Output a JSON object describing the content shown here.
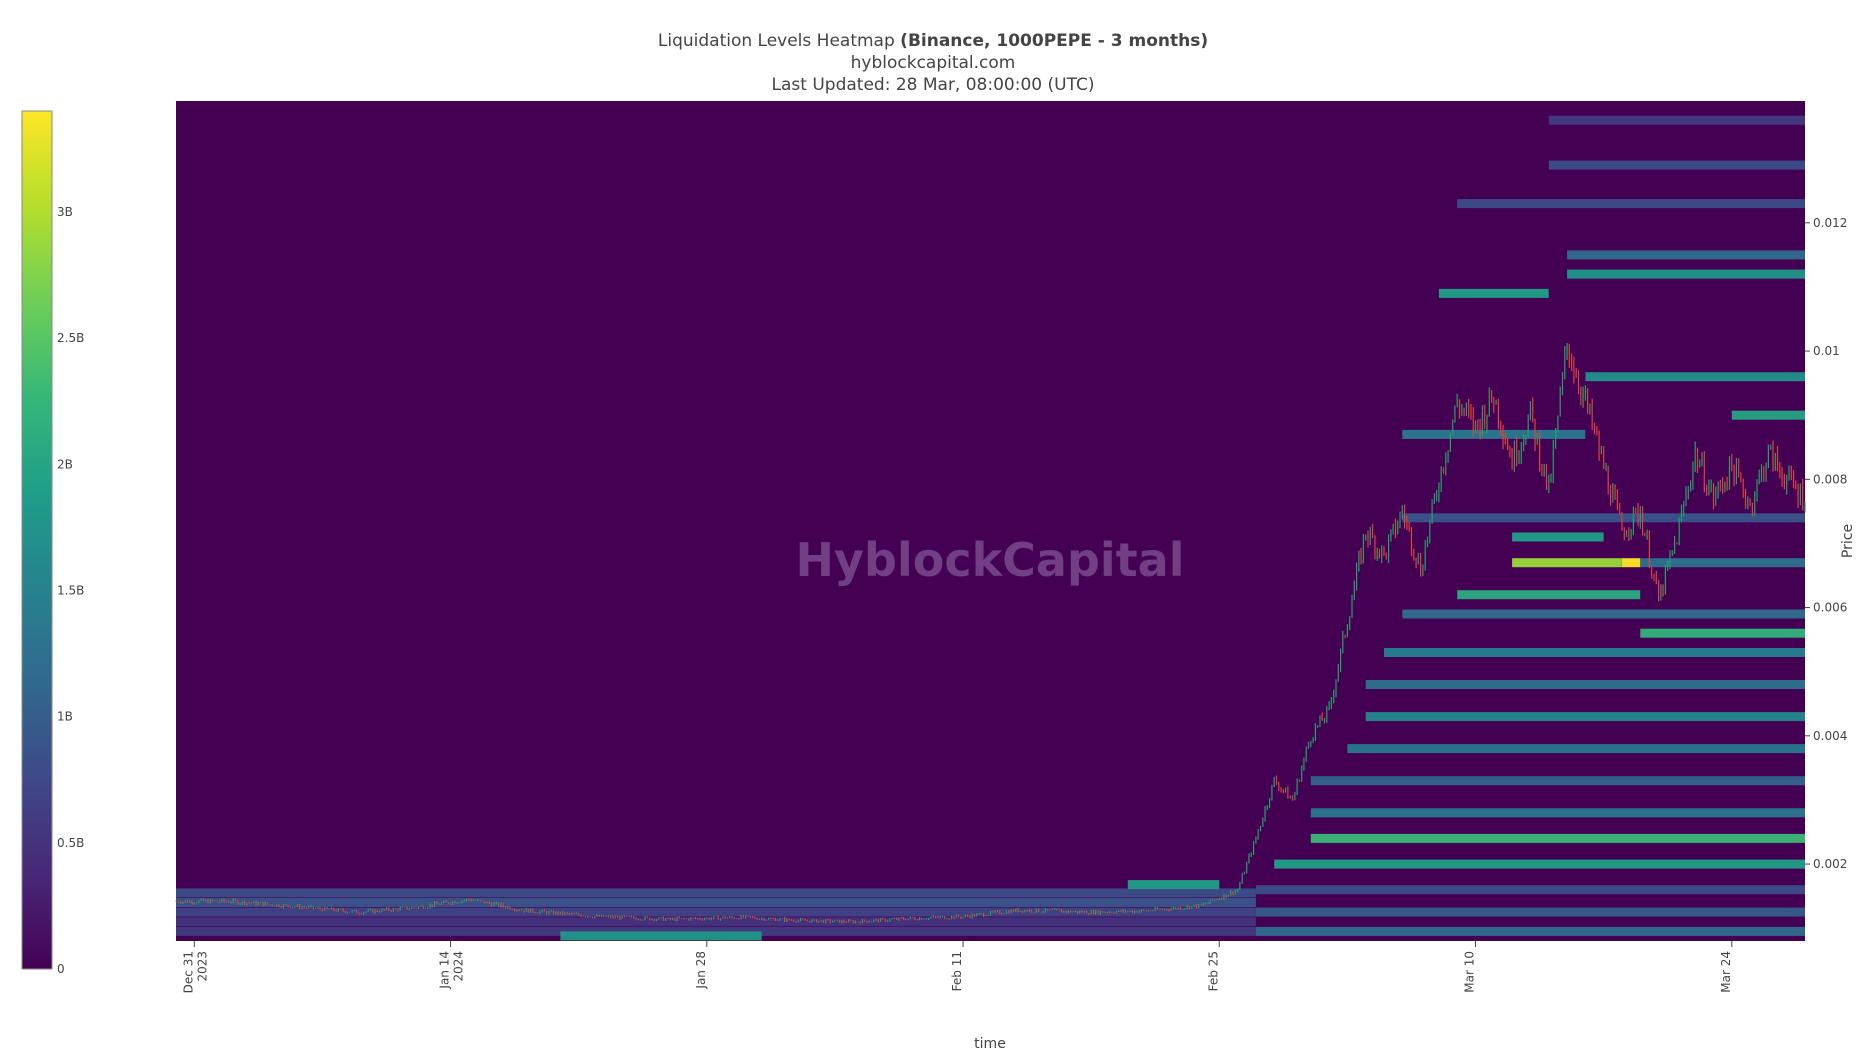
{
  "header": {
    "title_prefix": "Liquidation Levels Heatmap ",
    "title_bold": "(Binance, 1000PEPE - 3 months)",
    "subtitle": "hyblockcapital.com",
    "updated": "Last Updated: 28 Mar, 08:00:00 (UTC)"
  },
  "watermark": "HyblockCapital",
  "colors": {
    "background_heat": "#440154",
    "colorscale": [
      "#440154",
      "#482878",
      "#3e4989",
      "#31688e",
      "#26828e",
      "#1f9e89",
      "#35b779",
      "#6ece58",
      "#b5de2b",
      "#fde725"
    ],
    "candle_up": "#2a9d6a",
    "candle_down": "#e0423c"
  },
  "chart_data": {
    "type": "heatmap",
    "title": "Liquidation Levels Heatmap (Binance, 1000PEPE - 3 months)",
    "xlabel": "time",
    "ylabel": "Price",
    "x_range": [
      "2023-12-30",
      "2024-03-28"
    ],
    "y_range": [
      0.0008,
      0.0139
    ],
    "x_ticks": [
      {
        "date": "2023-12-31",
        "line1": "Dec 31",
        "line2": "2023"
      },
      {
        "date": "2024-01-14",
        "line1": "Jan 14",
        "line2": "2024"
      },
      {
        "date": "2024-01-28",
        "line1": "Jan 28",
        "line2": ""
      },
      {
        "date": "2024-02-11",
        "line1": "Feb 11",
        "line2": ""
      },
      {
        "date": "2024-02-25",
        "line1": "Feb 25",
        "line2": ""
      },
      {
        "date": "2024-03-10",
        "line1": "Mar 10",
        "line2": ""
      },
      {
        "date": "2024-03-24",
        "line1": "Mar 24",
        "line2": ""
      }
    ],
    "y_ticks": [
      "0.002",
      "0.004",
      "0.006",
      "0.008",
      "0.01",
      "0.012"
    ],
    "colorbar": {
      "range": [
        0,
        3.4
      ],
      "unit_values": [
        0,
        0.5,
        1,
        1.5,
        2,
        2.5,
        3
      ],
      "labels": [
        "0",
        "0.5B",
        "1B",
        "1.5B",
        "2B",
        "2.5B",
        "3B"
      ]
    },
    "liquidation_bands": [
      {
        "start": "2023-12-30",
        "end": "2024-02-27",
        "price": 0.00095,
        "value": 0.6
      },
      {
        "start": "2023-12-30",
        "end": "2024-02-27",
        "price": 0.0011,
        "value": 0.5
      },
      {
        "start": "2023-12-30",
        "end": "2024-02-27",
        "price": 0.00125,
        "value": 0.7
      },
      {
        "start": "2023-12-30",
        "end": "2024-02-27",
        "price": 0.0014,
        "value": 0.9
      },
      {
        "start": "2023-12-30",
        "end": "2024-02-27",
        "price": 0.00155,
        "value": 0.8
      },
      {
        "start": "2024-01-20",
        "end": "2024-01-31",
        "price": 0.00088,
        "value": 1.8
      },
      {
        "start": "2024-02-20",
        "end": "2024-02-25",
        "price": 0.00168,
        "value": 1.9
      },
      {
        "start": "2024-02-27",
        "end": "2024-03-28",
        "price": 0.00095,
        "value": 1.2
      },
      {
        "start": "2024-02-27",
        "end": "2024-03-28",
        "price": 0.00125,
        "value": 1.0
      },
      {
        "start": "2024-02-27",
        "end": "2024-03-28",
        "price": 0.0016,
        "value": 0.8
      },
      {
        "start": "2024-02-28",
        "end": "2024-03-28",
        "price": 0.002,
        "value": 1.9
      },
      {
        "start": "2024-03-01",
        "end": "2024-03-28",
        "price": 0.0024,
        "value": 2.3
      },
      {
        "start": "2024-03-01",
        "end": "2024-03-28",
        "price": 0.0028,
        "value": 1.4
      },
      {
        "start": "2024-03-01",
        "end": "2024-03-28",
        "price": 0.0033,
        "value": 1.1
      },
      {
        "start": "2024-03-03",
        "end": "2024-03-28",
        "price": 0.0038,
        "value": 1.4
      },
      {
        "start": "2024-03-04",
        "end": "2024-03-28",
        "price": 0.0043,
        "value": 1.6
      },
      {
        "start": "2024-03-04",
        "end": "2024-03-28",
        "price": 0.0048,
        "value": 1.3
      },
      {
        "start": "2024-03-05",
        "end": "2024-03-28",
        "price": 0.0053,
        "value": 1.5
      },
      {
        "start": "2024-03-19",
        "end": "2024-03-28",
        "price": 0.0056,
        "value": 2.2
      },
      {
        "start": "2024-03-06",
        "end": "2024-03-28",
        "price": 0.0059,
        "value": 1.2
      },
      {
        "start": "2024-03-09",
        "end": "2024-03-19",
        "price": 0.0062,
        "value": 2.1
      },
      {
        "start": "2024-03-12",
        "end": "2024-03-18",
        "price": 0.0067,
        "value": 2.9
      },
      {
        "start": "2024-03-18",
        "end": "2024-03-19",
        "price": 0.0067,
        "value": 3.4
      },
      {
        "start": "2024-03-19",
        "end": "2024-03-28",
        "price": 0.0067,
        "value": 1.3
      },
      {
        "start": "2024-03-12",
        "end": "2024-03-17",
        "price": 0.0071,
        "value": 1.9
      },
      {
        "start": "2024-03-06",
        "end": "2024-03-28",
        "price": 0.0074,
        "value": 0.9
      },
      {
        "start": "2024-03-06",
        "end": "2024-03-16",
        "price": 0.0087,
        "value": 1.4
      },
      {
        "start": "2024-03-24",
        "end": "2024-03-28",
        "price": 0.009,
        "value": 2.0
      },
      {
        "start": "2024-03-16",
        "end": "2024-03-28",
        "price": 0.0096,
        "value": 1.7
      },
      {
        "start": "2024-03-08",
        "end": "2024-03-14",
        "price": 0.0109,
        "value": 1.9
      },
      {
        "start": "2024-03-15",
        "end": "2024-03-28",
        "price": 0.0112,
        "value": 1.8
      },
      {
        "start": "2024-03-15",
        "end": "2024-03-28",
        "price": 0.0115,
        "value": 1.2
      },
      {
        "start": "2024-03-09",
        "end": "2024-03-28",
        "price": 0.0123,
        "value": 0.8
      },
      {
        "start": "2024-03-14",
        "end": "2024-03-28",
        "price": 0.0129,
        "value": 0.8
      },
      {
        "start": "2024-03-14",
        "end": "2024-03-28",
        "price": 0.0136,
        "value": 0.6
      }
    ],
    "price_series": {
      "dates": [
        "2023-12-30",
        "2024-01-02",
        "2024-01-05",
        "2024-01-09",
        "2024-01-12",
        "2024-01-15",
        "2024-01-18",
        "2024-01-22",
        "2024-01-26",
        "2024-01-30",
        "2024-02-02",
        "2024-02-05",
        "2024-02-08",
        "2024-02-11",
        "2024-02-14",
        "2024-02-18",
        "2024-02-21",
        "2024-02-24",
        "2024-02-26",
        "2024-02-27",
        "2024-02-28",
        "2024-02-29",
        "2024-03-01",
        "2024-03-02",
        "2024-03-03",
        "2024-03-04",
        "2024-03-05",
        "2024-03-06",
        "2024-03-07",
        "2024-03-08",
        "2024-03-09",
        "2024-03-10",
        "2024-03-11",
        "2024-03-12",
        "2024-03-13",
        "2024-03-14",
        "2024-03-15",
        "2024-03-16",
        "2024-03-17",
        "2024-03-18",
        "2024-03-19",
        "2024-03-20",
        "2024-03-21",
        "2024-03-22",
        "2024-03-23",
        "2024-03-24",
        "2024-03-25",
        "2024-03-26",
        "2024-03-27",
        "2024-03-28"
      ],
      "prices": [
        0.00142,
        0.00142,
        0.00135,
        0.00125,
        0.00132,
        0.00145,
        0.00128,
        0.00118,
        0.00114,
        0.00117,
        0.00112,
        0.0011,
        0.00115,
        0.00118,
        0.00128,
        0.00125,
        0.00127,
        0.00135,
        0.0016,
        0.0024,
        0.0033,
        0.003,
        0.004,
        0.0044,
        0.0058,
        0.0072,
        0.0068,
        0.0075,
        0.0066,
        0.008,
        0.0092,
        0.0088,
        0.0093,
        0.0083,
        0.009,
        0.0078,
        0.0101,
        0.0092,
        0.0082,
        0.0072,
        0.0075,
        0.0061,
        0.0071,
        0.0084,
        0.0077,
        0.0082,
        0.0076,
        0.0084,
        0.008,
        0.0077
      ]
    }
  }
}
